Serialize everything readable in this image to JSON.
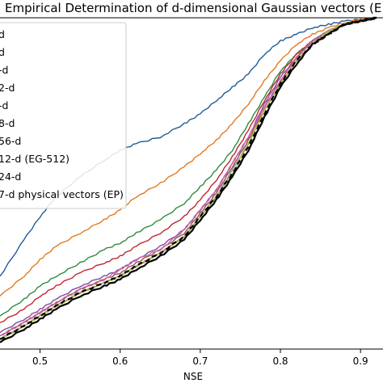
{
  "chart_data": {
    "type": "line",
    "title": "Empirical Determination of d-dimensional Gaussian vectors (E",
    "xlabel": "NSE",
    "ylabel": "",
    "xlim": [
      0.45,
      0.92
    ],
    "ylim": [
      0,
      1
    ],
    "x_ticks": [
      "0.5",
      "0.6",
      "0.7",
      "0.8",
      "0.9"
    ],
    "grid": false,
    "legend_position": "upper-left",
    "x": [
      0.45,
      0.48,
      0.5,
      0.52,
      0.55,
      0.58,
      0.6,
      0.62,
      0.65,
      0.68,
      0.7,
      0.72,
      0.74,
      0.76,
      0.78,
      0.8,
      0.82,
      0.84,
      0.86,
      0.88,
      0.9,
      0.92
    ],
    "series": [
      {
        "name": "d",
        "color": "#1f5c99",
        "dashed": false,
        "values": [
          0.22,
          0.33,
          0.4,
          0.46,
          0.52,
          0.57,
          0.6,
          0.62,
          0.64,
          0.68,
          0.71,
          0.75,
          0.79,
          0.83,
          0.89,
          0.93,
          0.95,
          0.97,
          0.98,
          0.99,
          0.995,
          1.0
        ]
      },
      {
        "name": "d",
        "color": "#e07b22",
        "dashed": false,
        "values": [
          0.16,
          0.22,
          0.27,
          0.31,
          0.35,
          0.39,
          0.42,
          0.46,
          0.5,
          0.55,
          0.59,
          0.63,
          0.68,
          0.74,
          0.81,
          0.87,
          0.92,
          0.95,
          0.97,
          0.985,
          0.995,
          1.0
        ]
      },
      {
        "name": "-d",
        "color": "#2e8b3e",
        "dashed": false,
        "values": [
          0.1,
          0.15,
          0.19,
          0.22,
          0.26,
          0.3,
          0.32,
          0.35,
          0.39,
          0.44,
          0.49,
          0.54,
          0.6,
          0.68,
          0.76,
          0.84,
          0.89,
          0.93,
          0.96,
          0.98,
          0.99,
          1.0
        ]
      },
      {
        "name": "2-d",
        "color": "#c0272d",
        "dashed": false,
        "values": [
          0.08,
          0.12,
          0.16,
          0.19,
          0.23,
          0.26,
          0.28,
          0.31,
          0.35,
          0.4,
          0.45,
          0.51,
          0.58,
          0.66,
          0.75,
          0.83,
          0.89,
          0.93,
          0.96,
          0.98,
          0.99,
          1.0
        ]
      },
      {
        "name": "-d",
        "color": "#7b4fa0",
        "dashed": false,
        "values": [
          0.05,
          0.09,
          0.12,
          0.15,
          0.19,
          0.22,
          0.24,
          0.27,
          0.31,
          0.36,
          0.42,
          0.48,
          0.56,
          0.64,
          0.74,
          0.82,
          0.88,
          0.93,
          0.96,
          0.98,
          0.99,
          1.0
        ]
      },
      {
        "name": "8-d",
        "color": "#8c564b",
        "dashed": false,
        "values": [
          0.04,
          0.08,
          0.11,
          0.14,
          0.18,
          0.21,
          0.23,
          0.26,
          0.3,
          0.35,
          0.41,
          0.47,
          0.55,
          0.63,
          0.73,
          0.81,
          0.88,
          0.93,
          0.96,
          0.98,
          0.99,
          1.0
        ]
      },
      {
        "name": "56-d",
        "color": "#d45fa8",
        "dashed": false,
        "values": [
          0.04,
          0.08,
          0.11,
          0.14,
          0.18,
          0.21,
          0.24,
          0.27,
          0.3,
          0.36,
          0.42,
          0.48,
          0.56,
          0.64,
          0.73,
          0.81,
          0.88,
          0.93,
          0.96,
          0.98,
          0.99,
          1.0
        ]
      },
      {
        "name": "12-d (EG-512)",
        "color": "#8a8a8a",
        "dashed": false,
        "values": [
          0.03,
          0.07,
          0.1,
          0.13,
          0.17,
          0.2,
          0.22,
          0.25,
          0.29,
          0.34,
          0.4,
          0.46,
          0.54,
          0.62,
          0.72,
          0.8,
          0.87,
          0.92,
          0.96,
          0.98,
          0.99,
          1.0
        ]
      },
      {
        "name": "24-d",
        "color": "#b5b535",
        "dashed": false,
        "values": [
          0.03,
          0.07,
          0.1,
          0.13,
          0.17,
          0.2,
          0.22,
          0.25,
          0.29,
          0.34,
          0.4,
          0.46,
          0.53,
          0.62,
          0.72,
          0.8,
          0.87,
          0.92,
          0.96,
          0.98,
          0.99,
          1.0
        ]
      },
      {
        "name": "7-d physical vectors (EP)",
        "color": "#000000",
        "dashed": true,
        "values": [
          0.03,
          0.07,
          0.1,
          0.13,
          0.17,
          0.2,
          0.22,
          0.25,
          0.29,
          0.34,
          0.4,
          0.46,
          0.53,
          0.61,
          0.71,
          0.8,
          0.87,
          0.92,
          0.95,
          0.98,
          0.99,
          1.0
        ]
      },
      {
        "name": "",
        "color": "#000000",
        "dashed": false,
        "values": [
          0.02,
          0.06,
          0.09,
          0.12,
          0.16,
          0.19,
          0.21,
          0.24,
          0.28,
          0.33,
          0.39,
          0.45,
          0.52,
          0.6,
          0.7,
          0.79,
          0.86,
          0.92,
          0.95,
          0.98,
          0.99,
          1.0
        ]
      }
    ]
  }
}
